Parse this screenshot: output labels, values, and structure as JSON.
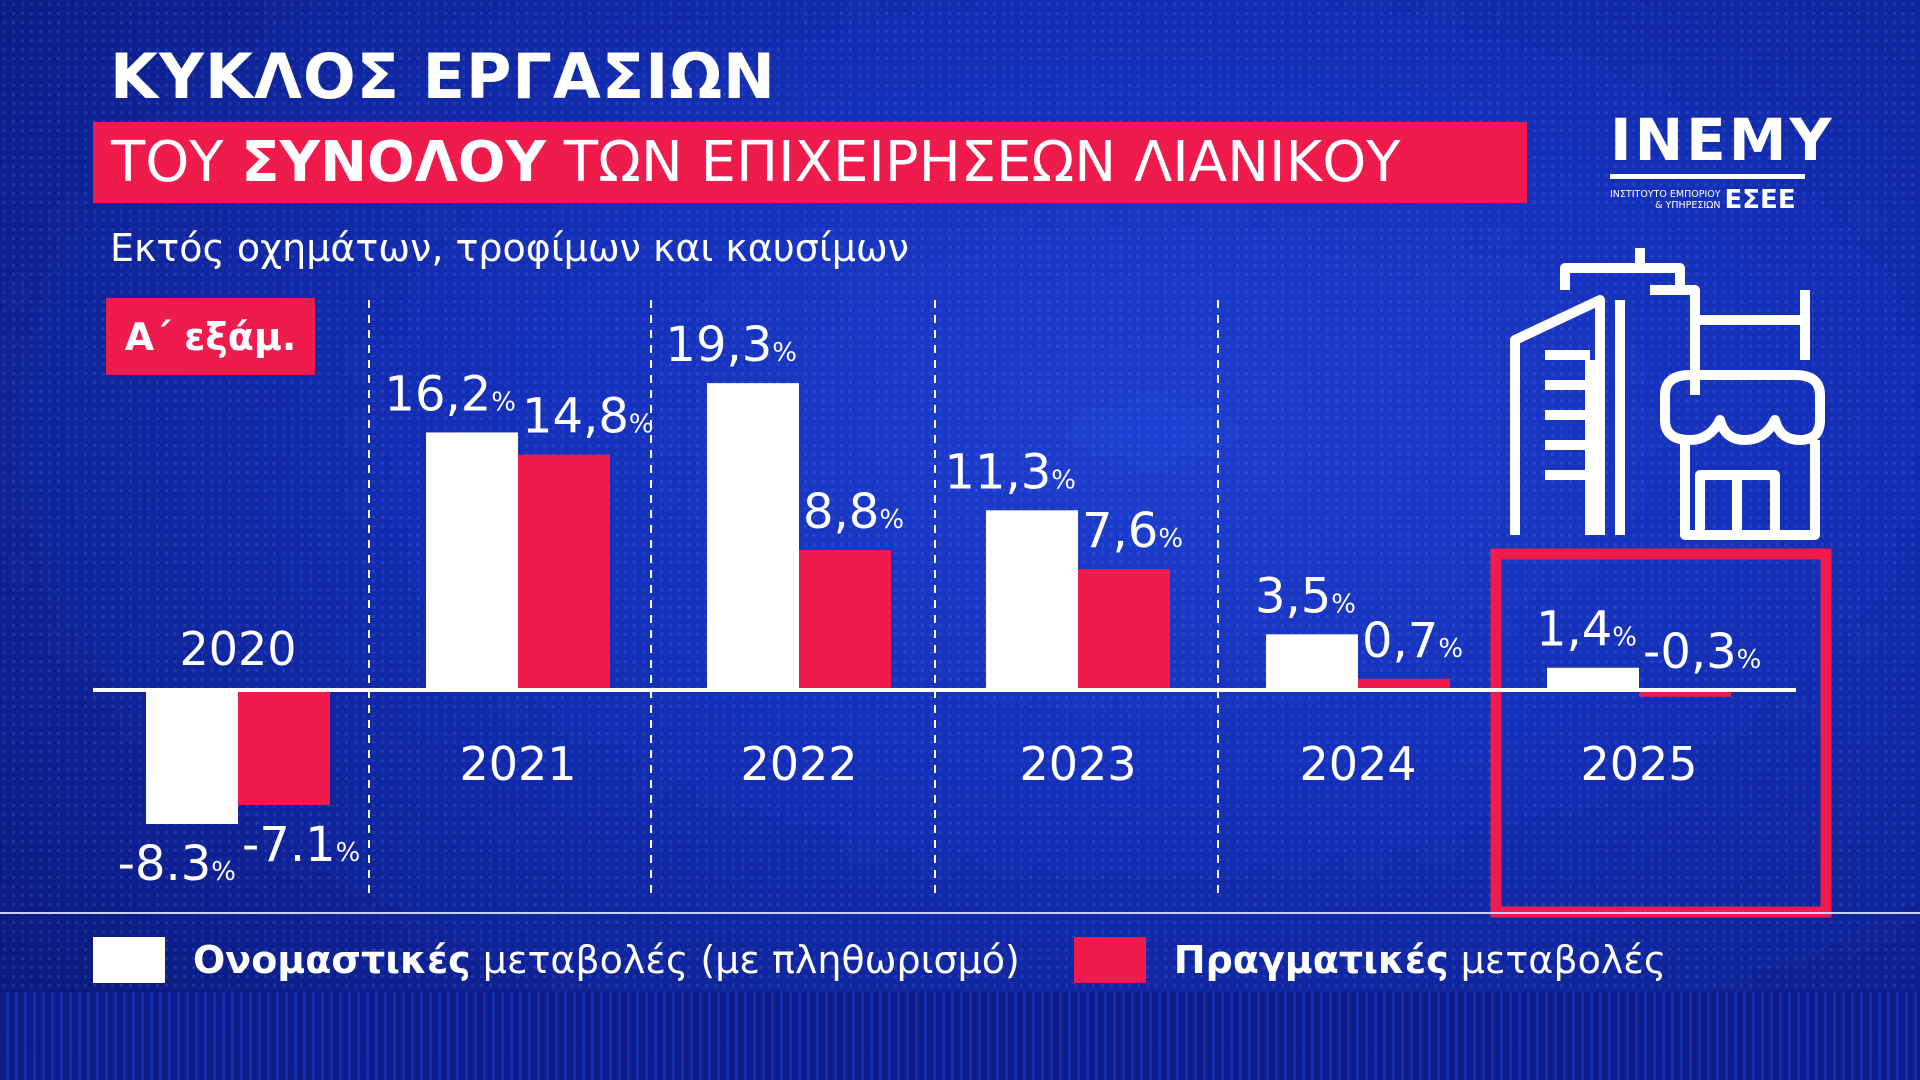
{
  "header": {
    "title": "ΚΥΚΛΟΣ ΕΡΓΑΣΙΩΝ",
    "band_pre": "ΤΟΥ ",
    "band_bold": "ΣΥΝΟΛΟΥ",
    "band_post": " ΤΩΝ ΕΠΙΧΕΙΡΗΣΕΩΝ ΛΙΑΝΙΚΟΥ",
    "subtitle": "Εκτός οχημάτων, τροφίμων και καυσίμων",
    "badge": "Α΄ εξάμ."
  },
  "logo": {
    "name": "INEMY",
    "line1": "ΙΝΣΤΙΤΟΥΤΟ ΕΜΠΟΡΙΟΥ",
    "line2": "& ΥΠΗΡΕΣΙΩΝ",
    "org": "ΕΣΕΕ"
  },
  "colors": {
    "nominal": "#ffffff",
    "real": "#ee1b4c",
    "highlight": "#ee1b4c"
  },
  "icons": [
    "buildings-store-icon"
  ],
  "chart_data": {
    "type": "bar",
    "categories": [
      "2020",
      "2021",
      "2022",
      "2023",
      "2024",
      "2025"
    ],
    "series": [
      {
        "name": "Ονομαστικές μεταβολές (με πληθωρισμό)",
        "values": [
          -8.3,
          16.2,
          19.3,
          11.3,
          3.5,
          1.4
        ],
        "labels": [
          "-8.3",
          "16,2",
          "19,3",
          "11,3",
          "3,5",
          "1,4"
        ]
      },
      {
        "name": "Πραγματικές μεταβολές",
        "values": [
          -7.1,
          14.8,
          8.8,
          7.6,
          0.7,
          -0.3
        ],
        "labels": [
          "-7.1",
          "14,8",
          "8,8",
          "7,6",
          "0,7",
          "-0,3"
        ]
      }
    ],
    "unit": "%",
    "highlighted_category": "2025",
    "grid": false
  },
  "legend": [
    {
      "bold": "Ονομαστικές",
      "rest": " μεταβολές (με πληθωρισμό)"
    },
    {
      "bold": "Πραγματικές",
      "rest": " μεταβολές"
    }
  ]
}
